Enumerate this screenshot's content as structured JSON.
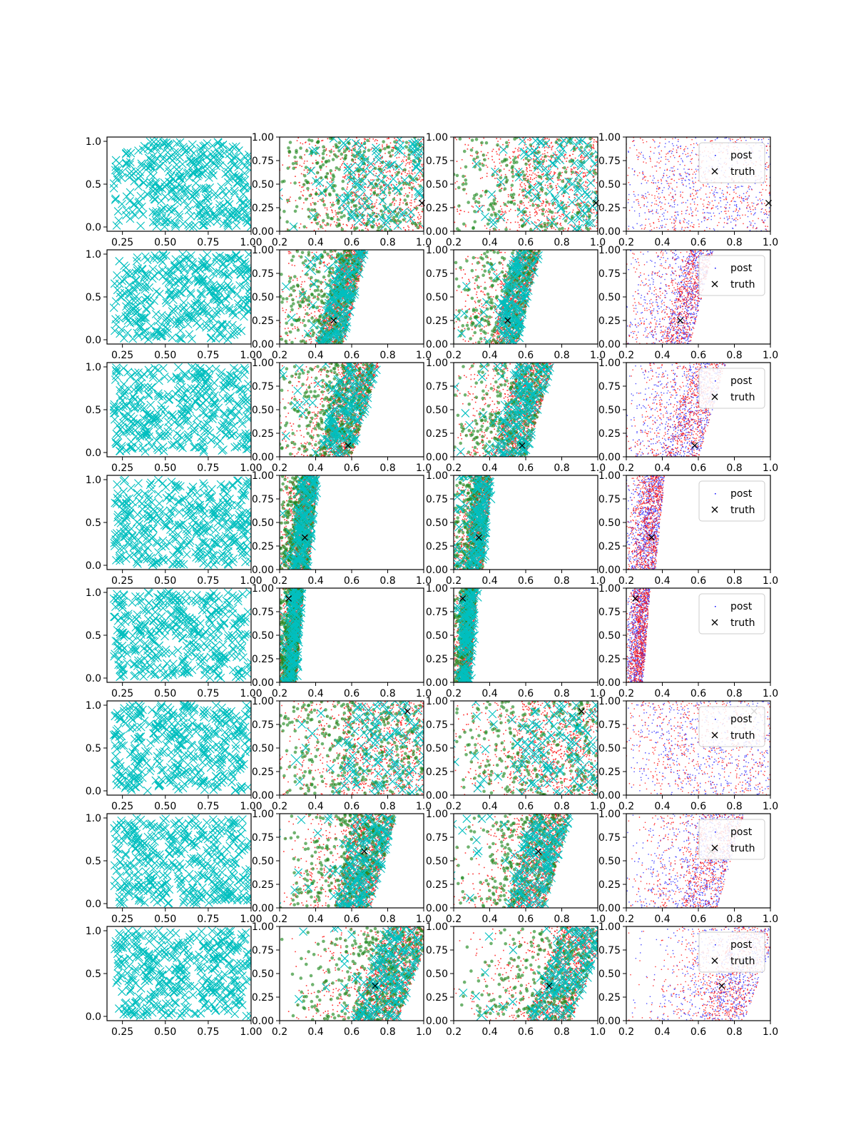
{
  "colors": {
    "post_blue": "#0000ff",
    "post_red": "#ff0000",
    "samples_green": "#228b22",
    "proposal_cyan": "#00bfbf",
    "truth_black": "#000000"
  },
  "legend_labels": [
    "post",
    "truth"
  ],
  "chart_data": {
    "type": "scatter",
    "layout": "8 rows x 4 columns grid of scatter subplots",
    "columns": [
      {
        "name": "",
        "xticks": [
          "0.25",
          "0.50",
          "0.75",
          "1.00"
        ],
        "yticks": [
          "0.0",
          "0.5",
          "1.0"
        ],
        "xlim": [
          0.16,
          1.0
        ],
        "ylim": [
          -0.05,
          1.05
        ],
        "content": "uniform cyan x markers covering [0.2,1]x[0,1]",
        "marker_count_approx": 400
      },
      {
        "name": "",
        "xticks": [
          "0.2",
          "0.4",
          "0.6",
          "0.8",
          "1.0"
        ],
        "yticks": [
          "0.00",
          "0.25",
          "0.50",
          "0.75",
          "1.00"
        ],
        "xlim": [
          0.2,
          1.0
        ],
        "ylim": [
          0.0,
          1.0
        ],
        "content": "red dots, green circles, cyan x markers, black truth x"
      },
      {
        "name": "",
        "xticks": [
          "0.2",
          "0.4",
          "0.6",
          "0.8",
          "1.0"
        ],
        "yticks": [
          "0.00",
          "0.25",
          "0.50",
          "0.75",
          "1.00"
        ],
        "xlim": [
          0.2,
          1.0
        ],
        "ylim": [
          0.0,
          1.0
        ],
        "content": "red dots, green circles, cyan x markers, black truth x"
      },
      {
        "name": "",
        "xticks": [
          "0.2",
          "0.4",
          "0.6",
          "0.8",
          "1.0"
        ],
        "yticks": [
          "0.00",
          "0.25",
          "0.50",
          "0.75",
          "1.00"
        ],
        "xlim": [
          0.2,
          1.0
        ],
        "ylim": [
          0.0,
          1.0
        ],
        "content": "blue and red posterior dots, black truth x",
        "legend": {
          "entries": [
            "post",
            "truth"
          ],
          "placement": "upper right"
        }
      }
    ],
    "rows": [
      {
        "truth": [
          0.99,
          0.3
        ],
        "band": {
          "x_bottom": [
            0.55,
            1.3
          ],
          "x_top": [
            0.55,
            1.3
          ],
          "spread_left": 0.22
        }
      },
      {
        "truth": [
          0.5,
          0.25
        ],
        "band": {
          "x_bottom": [
            0.4,
            0.55
          ],
          "x_top": [
            0.55,
            0.68
          ],
          "spread_left": 0.16
        }
      },
      {
        "truth": [
          0.58,
          0.12
        ],
        "band": {
          "x_bottom": [
            0.42,
            0.6
          ],
          "x_top": [
            0.55,
            0.75
          ],
          "spread_left": 0.16
        }
      },
      {
        "truth": [
          0.34,
          0.34
        ],
        "band": {
          "x_bottom": [
            0.27,
            0.36
          ],
          "x_top": [
            0.32,
            0.41
          ],
          "spread_left": 0.05
        }
      },
      {
        "truth": [
          0.25,
          0.89
        ],
        "band": {
          "x_bottom": [
            0.23,
            0.29
          ],
          "x_top": [
            0.27,
            0.33
          ],
          "spread_left": 0.03
        }
      },
      {
        "truth": [
          0.91,
          0.89
        ],
        "band": {
          "x_bottom": [
            0.55,
            1.2
          ],
          "x_top": [
            0.55,
            1.2
          ],
          "spread_left": 0.22
        }
      },
      {
        "truth": [
          0.67,
          0.6
        ],
        "band": {
          "x_bottom": [
            0.5,
            0.7
          ],
          "x_top": [
            0.62,
            0.85
          ],
          "spread_left": 0.18
        }
      },
      {
        "truth": [
          0.73,
          0.37
        ],
        "band": {
          "x_bottom": [
            0.6,
            0.85
          ],
          "x_top": [
            0.8,
            1.05
          ],
          "spread_left": 0.2
        }
      }
    ]
  }
}
